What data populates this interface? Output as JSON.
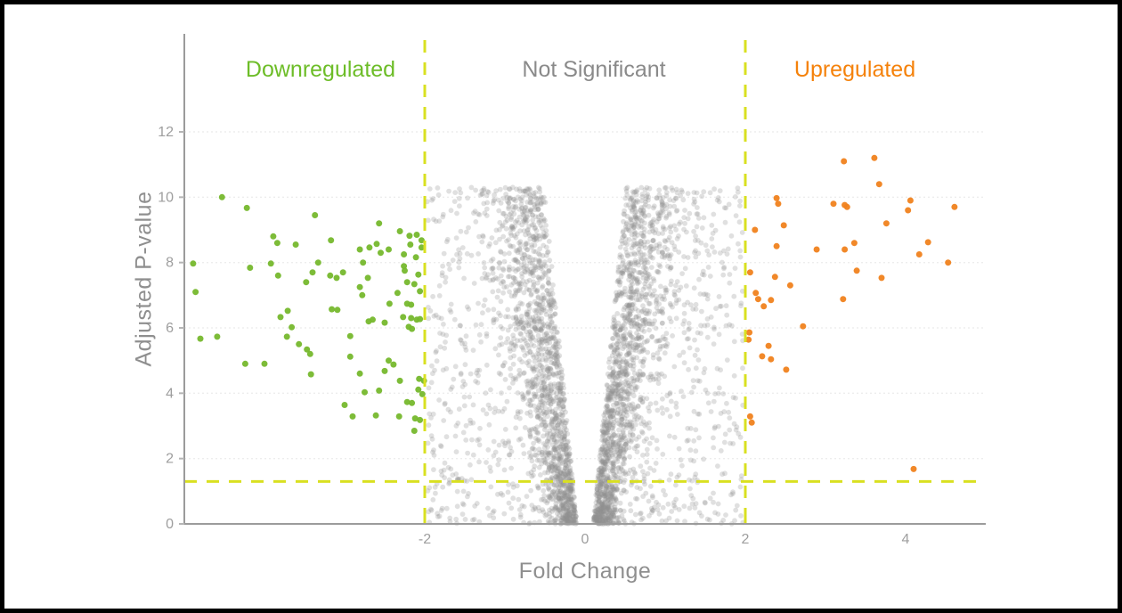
{
  "chart_data": {
    "type": "scatter",
    "subtype": "volcano-plot",
    "title": "",
    "xlabel": "Fold Change",
    "ylabel": "Adjusted P-value",
    "xlim": [
      -5,
      5
    ],
    "ylim": [
      0,
      15
    ],
    "x_ticks": [
      -2,
      0,
      2,
      4
    ],
    "y_ticks": [
      0,
      2,
      4,
      6,
      8,
      10,
      12
    ],
    "grid": "horizontal-faint",
    "legend_position": "none",
    "thresholds": {
      "fold_change": [
        -2,
        2
      ],
      "p_value_line": 1.3
    },
    "region_labels": [
      {
        "text": "Downregulated",
        "color": "#6dbd28",
        "region": "left"
      },
      {
        "text": "Not Significant",
        "color": "#8a8a8a",
        "region": "middle"
      },
      {
        "text": "Upregulated",
        "color": "#f5820b",
        "region": "right"
      }
    ],
    "series": [
      {
        "name": "Downregulated",
        "color": "#76b82d",
        "radius": 3.5,
        "opacity": 0.95,
        "points": [
          [
            -4.53,
            10.0
          ],
          [
            -4.22,
            9.67
          ],
          [
            -3.37,
            9.45
          ],
          [
            -2.57,
            9.2
          ],
          [
            -2.31,
            8.96
          ],
          [
            -3.89,
            8.8
          ],
          [
            -3.84,
            8.6
          ],
          [
            -3.17,
            8.68
          ],
          [
            -3.61,
            8.55
          ],
          [
            -2.81,
            8.4
          ],
          [
            -2.69,
            8.46
          ],
          [
            -2.6,
            8.57
          ],
          [
            -2.55,
            8.3
          ],
          [
            -2.45,
            8.4
          ],
          [
            -2.19,
            8.82
          ],
          [
            -2.1,
            8.85
          ],
          [
            -2.04,
            8.68
          ],
          [
            -2.18,
            8.55
          ],
          [
            -2.04,
            8.46
          ],
          [
            -2.26,
            8.25
          ],
          [
            -2.11,
            8.16
          ],
          [
            -4.89,
            7.97
          ],
          [
            -4.18,
            7.84
          ],
          [
            -3.92,
            7.97
          ],
          [
            -3.33,
            8.0
          ],
          [
            -2.77,
            8.0
          ],
          [
            -3.4,
            7.7
          ],
          [
            -3.83,
            7.6
          ],
          [
            -3.48,
            7.4
          ],
          [
            -3.18,
            7.6
          ],
          [
            -3.1,
            7.53
          ],
          [
            -3.02,
            7.7
          ],
          [
            -2.71,
            7.53
          ],
          [
            -2.25,
            7.75
          ],
          [
            -2.08,
            7.63
          ],
          [
            -4.86,
            7.1
          ],
          [
            -2.81,
            7.25
          ],
          [
            -2.78,
            7.0
          ],
          [
            -2.34,
            7.07
          ],
          [
            -2.44,
            6.74
          ],
          [
            -2.26,
            7.89
          ],
          [
            -2.22,
            7.4
          ],
          [
            -2.13,
            7.34
          ],
          [
            -2.06,
            7.12
          ],
          [
            -2.22,
            6.74
          ],
          [
            -2.17,
            6.71
          ],
          [
            -3.16,
            6.57
          ],
          [
            -3.09,
            6.55
          ],
          [
            -3.71,
            6.52
          ],
          [
            -3.8,
            6.33
          ],
          [
            -2.65,
            6.25
          ],
          [
            -2.7,
            6.2
          ],
          [
            -2.5,
            6.16
          ],
          [
            -2.27,
            6.33
          ],
          [
            -2.17,
            6.3
          ],
          [
            -2.1,
            6.25
          ],
          [
            -2.2,
            6.03
          ],
          [
            -2.16,
            5.97
          ],
          [
            -2.06,
            6.27
          ],
          [
            -3.66,
            6.02
          ],
          [
            -4.8,
            5.67
          ],
          [
            -4.59,
            5.73
          ],
          [
            -3.72,
            5.73
          ],
          [
            -3.57,
            5.5
          ],
          [
            -3.47,
            5.34
          ],
          [
            -3.43,
            5.2
          ],
          [
            -2.93,
            5.75
          ],
          [
            -4.24,
            4.9
          ],
          [
            -4.0,
            4.9
          ],
          [
            -3.42,
            4.58
          ],
          [
            -2.93,
            5.12
          ],
          [
            -2.81,
            4.6
          ],
          [
            -2.75,
            4.03
          ],
          [
            -2.57,
            4.08
          ],
          [
            -3.0,
            3.64
          ],
          [
            -2.9,
            3.29
          ],
          [
            -2.61,
            3.32
          ],
          [
            -2.5,
            4.68
          ],
          [
            -2.39,
            4.88
          ],
          [
            -2.45,
            5.0
          ],
          [
            -2.31,
            4.38
          ],
          [
            -2.22,
            3.73
          ],
          [
            -2.16,
            3.7
          ],
          [
            -2.07,
            4.44
          ],
          [
            -2.01,
            4.38
          ],
          [
            -2.08,
            4.11
          ],
          [
            -2.03,
            3.97
          ],
          [
            -2.32,
            3.29
          ],
          [
            -2.12,
            3.23
          ],
          [
            -2.06,
            3.18
          ],
          [
            -2.13,
            2.85
          ]
        ]
      },
      {
        "name": "Upregulated",
        "color": "#f0821e",
        "radius": 3.5,
        "opacity": 0.95,
        "points": [
          [
            3.23,
            11.1
          ],
          [
            3.61,
            11.2
          ],
          [
            3.67,
            10.4
          ],
          [
            2.39,
            9.97
          ],
          [
            2.41,
            9.8
          ],
          [
            3.1,
            9.8
          ],
          [
            3.24,
            9.76
          ],
          [
            3.27,
            9.7
          ],
          [
            4.06,
            9.9
          ],
          [
            4.03,
            9.6
          ],
          [
            4.61,
            9.7
          ],
          [
            3.76,
            9.2
          ],
          [
            2.12,
            9.0
          ],
          [
            2.48,
            9.14
          ],
          [
            2.39,
            8.5
          ],
          [
            3.36,
            8.6
          ],
          [
            2.89,
            8.4
          ],
          [
            3.24,
            8.4
          ],
          [
            4.28,
            8.62
          ],
          [
            4.17,
            8.25
          ],
          [
            4.53,
            8.0
          ],
          [
            2.06,
            7.7
          ],
          [
            2.37,
            7.56
          ],
          [
            3.39,
            7.75
          ],
          [
            3.7,
            7.53
          ],
          [
            2.56,
            7.3
          ],
          [
            2.13,
            7.07
          ],
          [
            2.16,
            6.88
          ],
          [
            2.32,
            6.85
          ],
          [
            2.23,
            6.66
          ],
          [
            3.22,
            6.88
          ],
          [
            2.72,
            6.05
          ],
          [
            2.05,
            5.86
          ],
          [
            2.04,
            5.64
          ],
          [
            2.29,
            5.45
          ],
          [
            2.21,
            5.13
          ],
          [
            2.32,
            5.04
          ],
          [
            2.51,
            4.72
          ],
          [
            2.06,
            3.29
          ],
          [
            2.08,
            3.1
          ],
          [
            4.1,
            1.68
          ]
        ]
      },
      {
        "name": "Not Significant",
        "color": "#8f8f8f",
        "radius": 2.9,
        "opacity": 0.28,
        "generated": {
          "note": "dense unlabeled V-shaped cloud; individual values not resolvable, reproduced procedurally",
          "count": 3800,
          "seed": 42,
          "y_max": 10.3,
          "y_power": 1.3,
          "inner_base": 0.1,
          "inner_slope": 0.04,
          "arm_fraction": 0.72,
          "arm_sigma": 0.33,
          "outer_gap": 0.15,
          "outer_power": 1.2,
          "max_abs_x": 1.97
        }
      }
    ],
    "style": {
      "threshold_color": "#d9e021",
      "axis_color": "#9b9b9b",
      "tick_label_color": "#9e9e9e",
      "axis_title_color": "#8f8f8f",
      "grid_color": "#ededed",
      "background": "#ffffff",
      "frame_color": "#000000"
    }
  }
}
